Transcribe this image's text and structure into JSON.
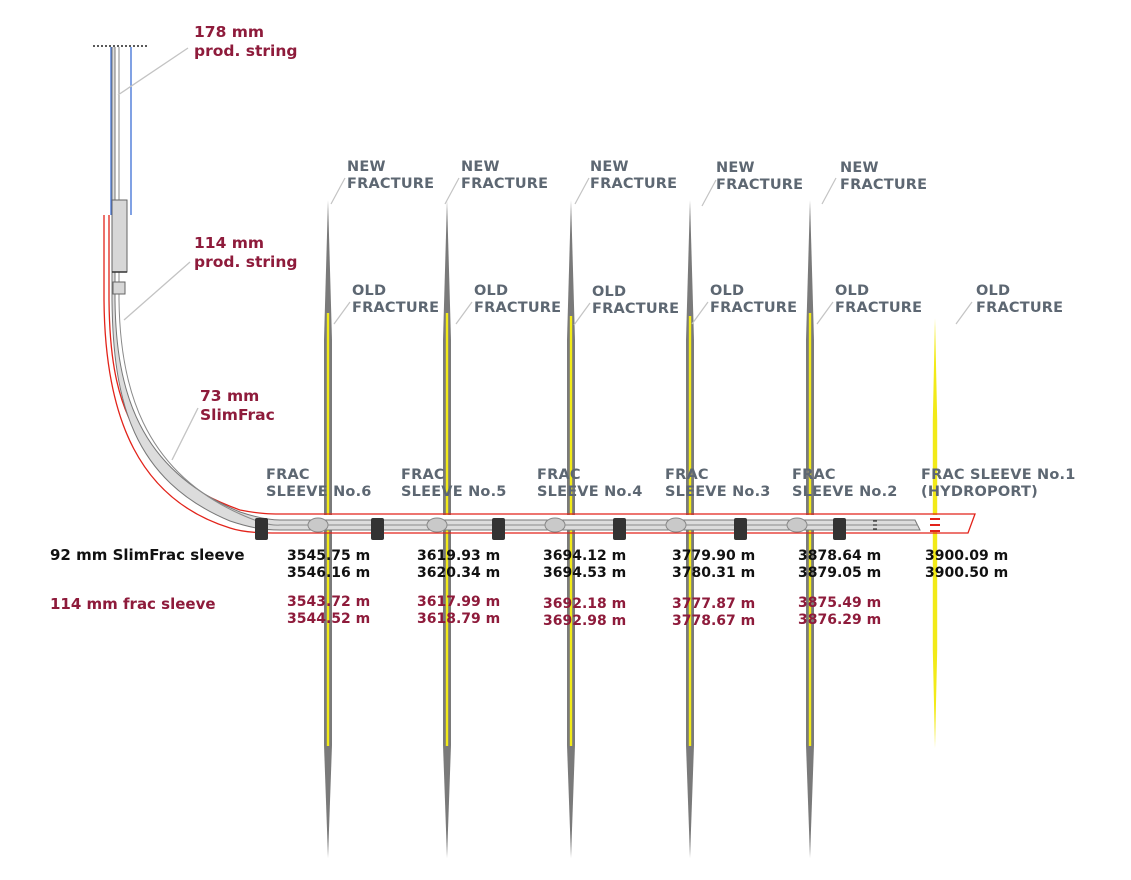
{
  "strings": [
    {
      "size": "178 mm",
      "name": "prod.  string"
    },
    {
      "size": "114 mm",
      "name": "prod. string"
    },
    {
      "size": "73 mm",
      "name": "SlimFrac"
    }
  ],
  "legend": {
    "slimfrac_sleeve": "92 mm SlimFrac sleeve",
    "frac_sleeve": "114 mm frac  sleeve"
  },
  "fracture_labels": {
    "new": [
      "NEW",
      "FRACTURE"
    ],
    "old": [
      "OLD",
      "FRACTURE"
    ]
  },
  "stages": [
    {
      "sleeve": [
        "FRAC",
        "SLEEVE No.6"
      ],
      "slimfrac_depths": [
        "3545.75 m",
        "3546.16 m"
      ],
      "frac_depths": [
        "3543.72 m",
        "3544.52 m"
      ],
      "new_fracture": true
    },
    {
      "sleeve": [
        "FRAC",
        "SLEEVE No.5"
      ],
      "slimfrac_depths": [
        "3619.93 m",
        "3620.34 m"
      ],
      "frac_depths": [
        "3617.99 m",
        "3618.79 m"
      ],
      "new_fracture": true
    },
    {
      "sleeve": [
        "FRAC",
        "SLEEVE No.4"
      ],
      "slimfrac_depths": [
        "3694.12 m",
        "3694.53 m"
      ],
      "frac_depths": [
        "3692.18 m",
        "3692.98 m"
      ],
      "new_fracture": true
    },
    {
      "sleeve": [
        "FRAC",
        "SLEEVE No.3"
      ],
      "slimfrac_depths": [
        "3779.90 m",
        "3780.31 m"
      ],
      "frac_depths": [
        "3777.87 m",
        "3778.67 m"
      ],
      "new_fracture": true
    },
    {
      "sleeve": [
        "FRAC",
        "SLEEVE No.2"
      ],
      "slimfrac_depths": [
        "3878.64 m",
        "3879.05 m"
      ],
      "frac_depths": [
        "3875.49 m",
        "3876.29 m"
      ],
      "new_fracture": true
    },
    {
      "sleeve": [
        "FRAC SLEEVE No.1",
        "(HYDROPORT)"
      ],
      "slimfrac_depths": [
        "3900.09 m",
        "3900.50 m"
      ],
      "frac_depths": [],
      "new_fracture": false
    }
  ],
  "colors": {
    "maroon": "#8e1b3b",
    "label_gray": "#5d6772",
    "old_fracture": "#f2ea18",
    "new_fracture": "#7a7a7a",
    "casing_red": "#e2231a",
    "casing_blue": "#3d6fd6",
    "tubing_fill": "#dcdcdc",
    "packer": "#333333"
  }
}
